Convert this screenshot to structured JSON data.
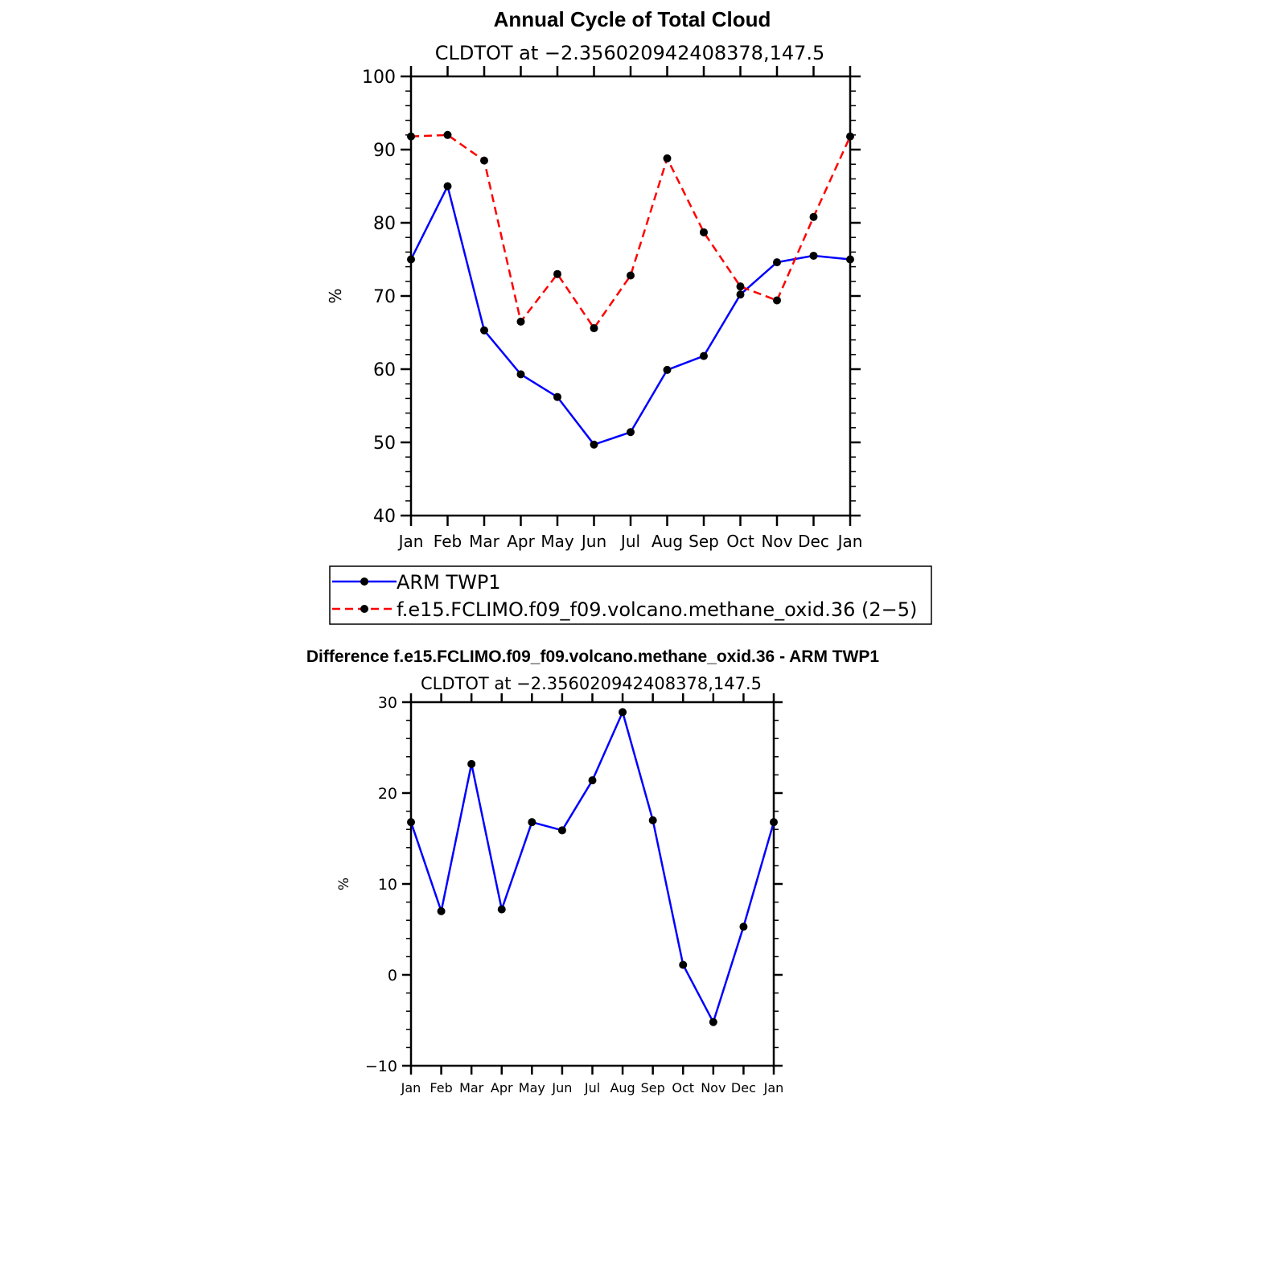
{
  "colors": {
    "arm": "#0000ff",
    "model": "#ff0000",
    "marker": "#000000",
    "axis": "#000000"
  },
  "top": {
    "title": "Annual Cycle of Total Cloud",
    "subtitle": "CLDTOT at −2.356020942408378,147.5",
    "ylabel": "%"
  },
  "bottom": {
    "title": "Difference f.e15.FCLIMO.f09_f09.volcano.methane_oxid.36 - ARM TWP1",
    "subtitle": "CLDTOT at −2.356020942408378,147.5",
    "ylabel": "%"
  },
  "legend": {
    "arm_label": "ARM TWP1",
    "model_label": "f.e15.FCLIMO.f09_f09.volcano.methane_oxid.36 (2−5)"
  },
  "chart_data": [
    {
      "type": "line",
      "title": "Annual Cycle of Total Cloud",
      "subtitle": "CLDTOT at −2.356020942408378,147.5",
      "xlabel": "",
      "ylabel": "%",
      "categories": [
        "Jan",
        "Feb",
        "Mar",
        "Apr",
        "May",
        "Jun",
        "Jul",
        "Aug",
        "Sep",
        "Oct",
        "Nov",
        "Dec",
        "Jan"
      ],
      "ylim": [
        40,
        100
      ],
      "yticks": [
        40,
        50,
        60,
        70,
        80,
        90,
        100
      ],
      "ytick_labels": [
        "40",
        "50",
        "60",
        "70",
        "80",
        "90",
        "100"
      ],
      "grid": false,
      "legend_placement": "below",
      "series": [
        {
          "name": "ARM TWP1",
          "color": "#0000ff",
          "style": "solid",
          "values": [
            75.0,
            85.0,
            65.3,
            59.3,
            56.2,
            49.7,
            51.4,
            59.9,
            61.8,
            70.2,
            74.6,
            75.5,
            75.0
          ]
        },
        {
          "name": "f.e15.FCLIMO.f09_f09.volcano.methane_oxid.36 (2−5)",
          "color": "#ff0000",
          "style": "dashed",
          "values": [
            91.8,
            92.0,
            88.5,
            66.5,
            73.0,
            65.6,
            72.8,
            88.8,
            78.7,
            71.3,
            69.4,
            80.8,
            91.8
          ]
        }
      ]
    },
    {
      "type": "line",
      "title": "Difference f.e15.FCLIMO.f09_f09.volcano.methane_oxid.36 - ARM TWP1",
      "subtitle": "CLDTOT at −2.356020942408378,147.5",
      "xlabel": "",
      "ylabel": "%",
      "categories": [
        "Jan",
        "Feb",
        "Mar",
        "Apr",
        "May",
        "Jun",
        "Jul",
        "Aug",
        "Sep",
        "Oct",
        "Nov",
        "Dec",
        "Jan"
      ],
      "ylim": [
        -10,
        30
      ],
      "yticks": [
        -10,
        0,
        10,
        20,
        30
      ],
      "ytick_labels": [
        "−10",
        "0",
        "10",
        "20",
        "30"
      ],
      "grid": false,
      "series": [
        {
          "color": "#0000ff",
          "style": "solid",
          "values": [
            16.8,
            7.0,
            23.2,
            7.2,
            16.8,
            15.9,
            21.4,
            28.9,
            17.0,
            1.1,
            -5.2,
            5.3,
            16.8
          ]
        }
      ]
    }
  ]
}
